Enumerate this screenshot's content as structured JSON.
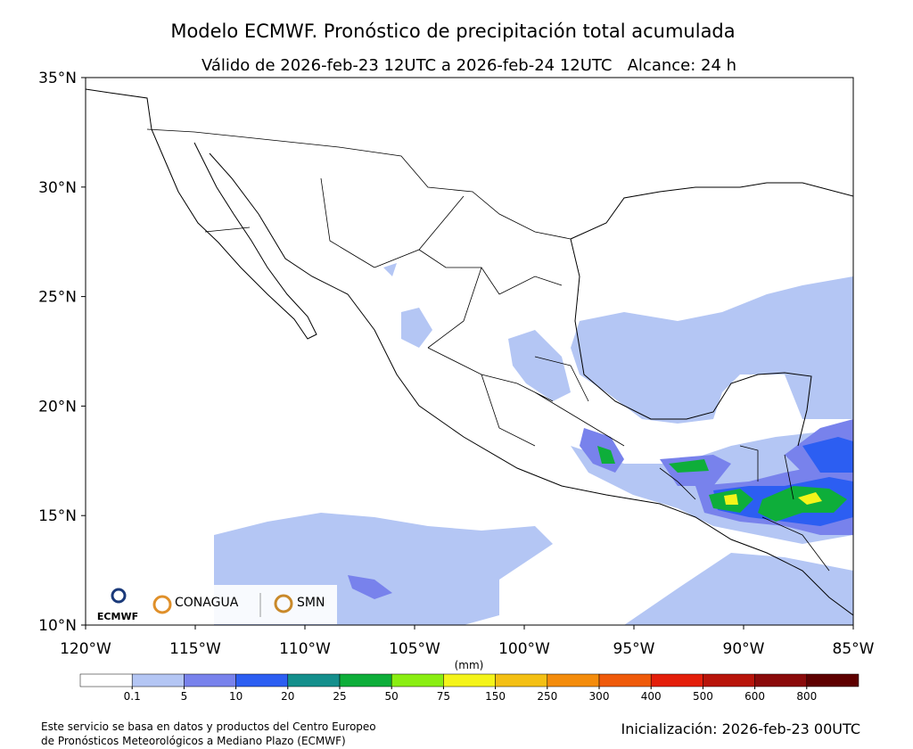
{
  "header": {
    "title": "Modelo ECMWF. Pronóstico de precipitación total acumulada",
    "subtitle": "Válido de 2026-feb-23 12UTC a 2026-feb-24 12UTC   Alcance: 24 h"
  },
  "map": {
    "lonlim": [
      -120,
      -85
    ],
    "latlim": [
      10,
      35
    ],
    "lon_ticks": [
      {
        "value": -120,
        "label": "120°W"
      },
      {
        "value": -115,
        "label": "115°W"
      },
      {
        "value": -110,
        "label": "110°W"
      },
      {
        "value": -105,
        "label": "105°W"
      },
      {
        "value": -100,
        "label": "100°W"
      },
      {
        "value": -95,
        "label": "95°W"
      },
      {
        "value": -90,
        "label": "90°W"
      },
      {
        "value": -85,
        "label": "85°W"
      }
    ],
    "lat_ticks": [
      {
        "value": 10,
        "label": "10°N"
      },
      {
        "value": 15,
        "label": "15°N"
      },
      {
        "value": 20,
        "label": "20°N"
      },
      {
        "value": 25,
        "label": "25°N"
      },
      {
        "value": 30,
        "label": "30°N"
      },
      {
        "value": 35,
        "label": "35°N"
      }
    ]
  },
  "colorbar": {
    "unit": "(mm)",
    "levels": [
      0.1,
      5,
      10,
      20,
      25,
      50,
      75,
      150,
      250,
      300,
      400,
      500,
      600,
      800
    ],
    "colors": [
      "#ffffff",
      "#b4c6f4",
      "#7882ec",
      "#2c5ef2",
      "#148f8c",
      "#0eae3a",
      "#8aee12",
      "#f4f41a",
      "#f4c014",
      "#f48c0c",
      "#ef5a0a",
      "#e41e0a",
      "#b8140a",
      "#8a0a0a",
      "#5e0000"
    ]
  },
  "logos": {
    "ecmwf": "ECMWF",
    "conagua": "CONAGUA",
    "smn": "SMN"
  },
  "footer": {
    "source": [
      "Este servicio se basa en datos y productos del Centro Europeo",
      "de Pronósticos Meteorológicos a Mediano Plazo (ECMWF)"
    ],
    "init": "Inicialización: 2026-feb-23 00UTC"
  }
}
